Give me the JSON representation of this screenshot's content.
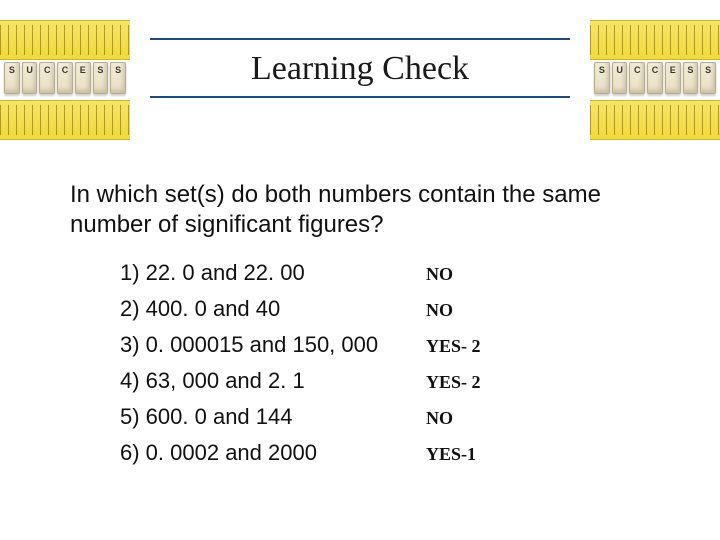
{
  "title": "Learning Check",
  "question": "In which set(s) do both numbers contain the same number of significant figures?",
  "items": [
    {
      "text": "1)  22. 0  and 22. 00",
      "answer": "NO"
    },
    {
      "text": "2)  400. 0 and 40",
      "answer": "NO"
    },
    {
      "text": "3)  0. 000015 and 150, 000",
      "answer": "YES- 2"
    },
    {
      "text": "4) 63, 000 and 2. 1",
      "answer": "YES- 2"
    },
    {
      "text": "5) 600. 0 and 144",
      "answer": "NO"
    },
    {
      "text": "6) 0. 0002 and 2000",
      "answer": "YES-1"
    }
  ],
  "style": {
    "title_rule_color": "#1b4b7a",
    "title_fontsize": 34,
    "question_fontsize": 24,
    "item_fontsize": 22,
    "answer_fontsize": 18,
    "answer_font": "Comic Sans MS",
    "dice_letters": [
      "S",
      "U",
      "C",
      "C",
      "E",
      "S",
      "S"
    ]
  }
}
